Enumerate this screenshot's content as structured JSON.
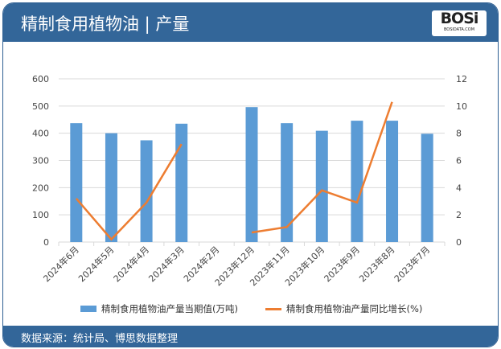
{
  "header": {
    "title": "精制食用植物油 | 产量",
    "logo": "BOSi BOSIDATA.COM"
  },
  "footer": {
    "source": "数据来源：统计局、博思数据整理"
  },
  "colors": {
    "bar": "#5b9bd5",
    "line": "#ed7d31",
    "header": "#336699"
  },
  "chart_data": {
    "type": "bar+line",
    "categories": [
      "2024年6月",
      "2024年5月",
      "2024年4月",
      "2024年3月",
      "2024年2月",
      "2023年12月",
      "2023年11月",
      "2023年10月",
      "2023年9月",
      "2023年8月",
      "2023年7月"
    ],
    "series": [
      {
        "name": "精制食用植物油产量当期值(万吨)",
        "type": "bar",
        "axis": "left",
        "values": [
          437,
          400,
          374,
          435,
          null,
          496,
          437,
          409,
          446,
          446,
          398
        ]
      },
      {
        "name": "精制食用植物油产量同比增长(%)",
        "type": "line",
        "axis": "right",
        "values": [
          3.2,
          0.2,
          2.9,
          7.2,
          null,
          0.7,
          1.1,
          3.8,
          2.9,
          10.3,
          null
        ]
      }
    ],
    "y_left": {
      "range": [
        0,
        600
      ],
      "ticks": [
        0,
        100,
        200,
        300,
        400,
        500,
        600
      ]
    },
    "y_right": {
      "range": [
        0,
        12
      ],
      "ticks": [
        0,
        2,
        4,
        6,
        8,
        10,
        12
      ]
    },
    "grid": true,
    "legend": "bottom"
  }
}
